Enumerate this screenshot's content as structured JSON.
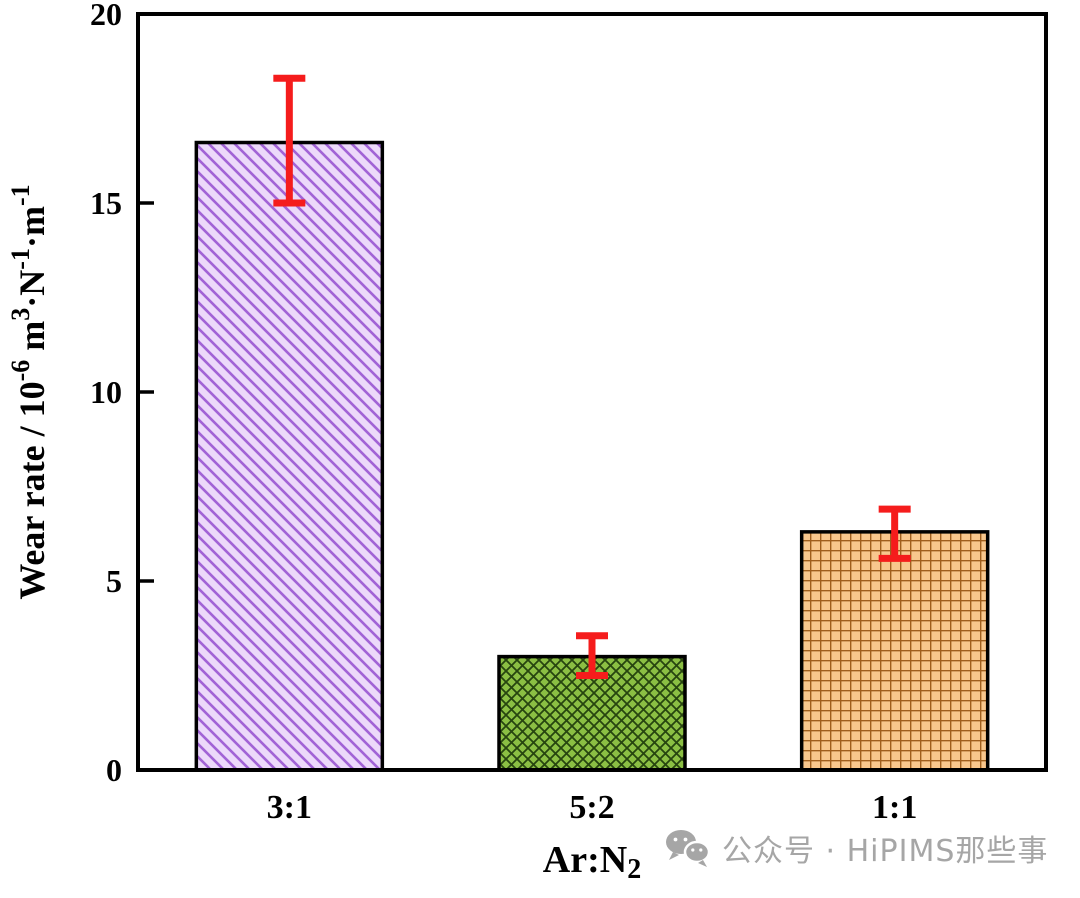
{
  "figure": {
    "background": "#ffffff"
  },
  "chart_data": {
    "type": "bar",
    "categories": [
      "3:1",
      "5:2",
      "1:1"
    ],
    "values": [
      16.6,
      3.0,
      6.3
    ],
    "errors_up": [
      1.7,
      0.55,
      0.6
    ],
    "errors_down": [
      1.6,
      0.5,
      0.7
    ],
    "title": "",
    "xlabel": "Ar:N2",
    "xlabel_parts": [
      {
        "t": "Ar:N"
      },
      {
        "t": "2",
        "sub": true
      }
    ],
    "ylabel": "Wear rate / 10^-6 m^3·N^-1·m^-1",
    "ylabel_parts": [
      {
        "t": "Wear rate / 10"
      },
      {
        "t": "-6",
        "sup": true
      },
      {
        "t": " m"
      },
      {
        "t": "3",
        "sup": true
      },
      {
        "t": "·N"
      },
      {
        "t": "-1",
        "sup": true
      },
      {
        "t": "·m"
      },
      {
        "t": "-1",
        "sup": true
      }
    ],
    "ylim": [
      0,
      20
    ],
    "yticks": [
      0,
      5,
      10,
      15,
      20
    ],
    "grid": false,
    "legend": false,
    "axis_color": "#000000",
    "bar_border_color": "#000000",
    "error_color": "#f51c1c",
    "bar_styles": [
      {
        "fill": "#ecd9fa",
        "hatch": "diagonal-down",
        "hatch_color": "#a263d6",
        "hatch_spacing": 13,
        "hatch_width": 2.6
      },
      {
        "fill": "#8bbf43",
        "hatch": "cross-diagonal",
        "hatch_color": "#27450f",
        "hatch_spacing": 11,
        "hatch_width": 1.8
      },
      {
        "fill": "#f8c78d",
        "hatch": "grid",
        "hatch_color": "#a05f1e",
        "hatch_spacing": 10,
        "hatch_width": 1.8
      }
    ]
  },
  "watermark": {
    "icon": "wechat-icon",
    "text": "公众号 · HiPIMS那些事",
    "color": "#a6a6a6"
  }
}
